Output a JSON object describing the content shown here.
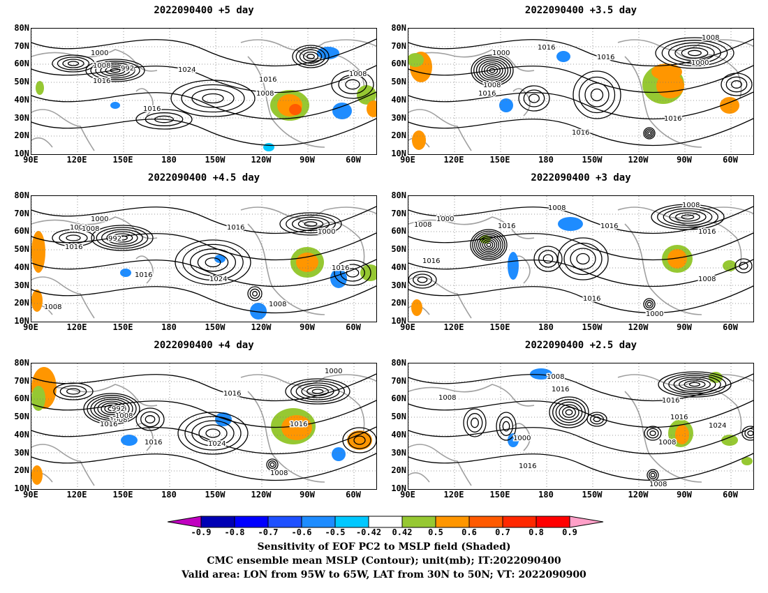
{
  "panels": [
    {
      "title": "2022090400  +5 day"
    },
    {
      "title": "2022090400  +3.5 day"
    },
    {
      "title": "2022090400  +4.5 day"
    },
    {
      "title": "2022090400  +3 day"
    },
    {
      "title": "2022090400  +4 day"
    },
    {
      "title": "2022090400  +2.5 day"
    }
  ],
  "axes": {
    "lat_labels": [
      "80N",
      "70N",
      "60N",
      "50N",
      "40N",
      "30N",
      "20N",
      "10N"
    ],
    "lon_labels": [
      "90E",
      "120E",
      "150E",
      "180",
      "150W",
      "120W",
      "90W",
      "60W"
    ]
  },
  "colorbar": {
    "labels": [
      "-0.9",
      "-0.8",
      "-0.7",
      "-0.6",
      "-0.5",
      "-0.42",
      "0.42",
      "0.5",
      "0.6",
      "0.7",
      "0.8",
      "0.9"
    ],
    "colors": [
      "#c000c0",
      "#0000b4",
      "#0000ff",
      "#1e50ff",
      "#1e8cff",
      "#00c8ff",
      "#ffffff",
      "#96c832",
      "#ff9600",
      "#ff5a00",
      "#ff2800",
      "#ff0000",
      "#ffa0c8"
    ]
  },
  "captions": {
    "line1": "Sensitivity of EOF PC2 to MSLP field (Shaded)",
    "line2": "CMC ensemble mean MSLP (Contour); unit(mb); IT:2022090400",
    "line3": "Valid area: LON from 95W to 65W, LAT from 30N to 50N; VT: 2022090900"
  },
  "contour_labels": [
    [
      "1000",
      "1008",
      "992",
      "1016",
      "1024",
      "1016",
      "1008",
      "1008",
      "1016"
    ],
    [
      "1008",
      "1016",
      "1000",
      "1016",
      "1008",
      "1016",
      "1000",
      "1016",
      "1016"
    ],
    [
      "1008",
      "1000",
      "1008",
      "992",
      "1016",
      "1016",
      "1024",
      "1016",
      "1016",
      "1008",
      "1000",
      "1008"
    ],
    [
      "1008",
      "1008",
      "1000",
      "1016",
      "1016",
      "1016",
      "1008",
      "1000",
      "1016",
      "1016",
      "1008"
    ],
    [
      "1000",
      "992",
      "1008",
      "1016",
      "1016",
      "1016",
      "1024",
      "1008",
      "1008",
      "1016"
    ],
    [
      "1008",
      "1008",
      "1016",
      "1016",
      "1000",
      "1016",
      "1024",
      "1016",
      "1008",
      "1008"
    ]
  ]
}
